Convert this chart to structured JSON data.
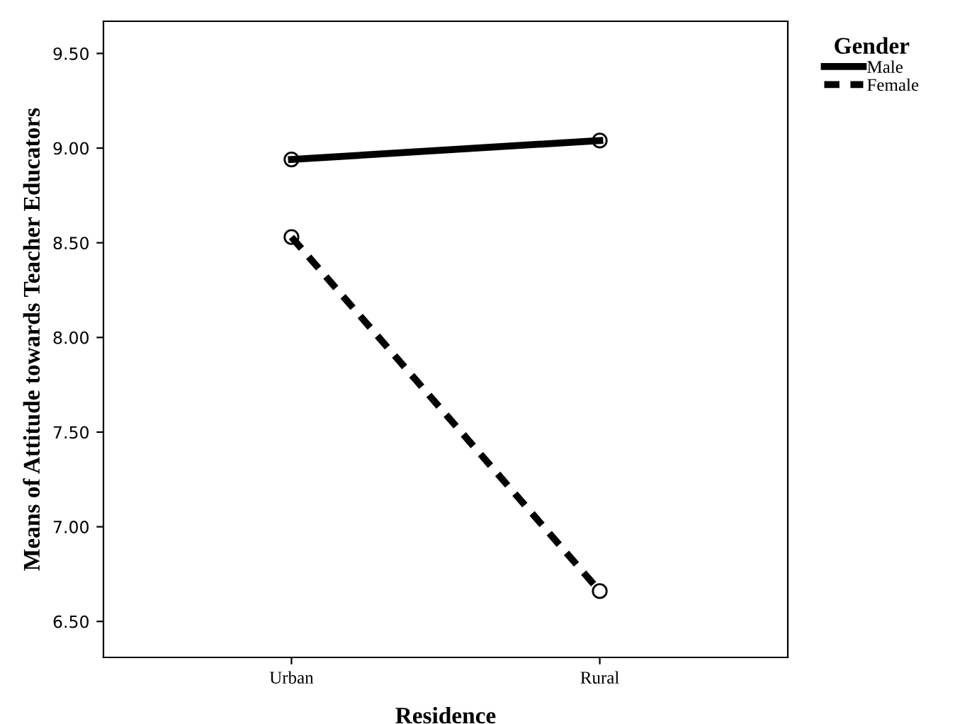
{
  "chart_data": {
    "type": "line",
    "xlabel": "Residence",
    "ylabel": "Means of Attitude towards Teacher Educators",
    "legend_title": "Gender",
    "categories": [
      "Urban",
      "Rural"
    ],
    "series": [
      {
        "name": "Male",
        "color": "#000000",
        "values": [
          8.94,
          9.04
        ],
        "line_style": "solid"
      },
      {
        "name": "Female",
        "color": "#000000",
        "values": [
          8.53,
          6.66
        ],
        "line_style": "dashed"
      }
    ],
    "ylim": [
      6.31,
      9.67
    ],
    "yticks": [
      {
        "value": 6.5,
        "label": "6.50"
      },
      {
        "value": 7.0,
        "label": "7.00"
      },
      {
        "value": 7.5,
        "label": "7.50"
      },
      {
        "value": 8.0,
        "label": "8.00"
      },
      {
        "value": 8.5,
        "label": "8.50"
      },
      {
        "value": 9.0,
        "label": "9.00"
      },
      {
        "value": 9.5,
        "label": "9.50"
      }
    ],
    "marker": "circle",
    "grid": false,
    "legend": "top right"
  }
}
